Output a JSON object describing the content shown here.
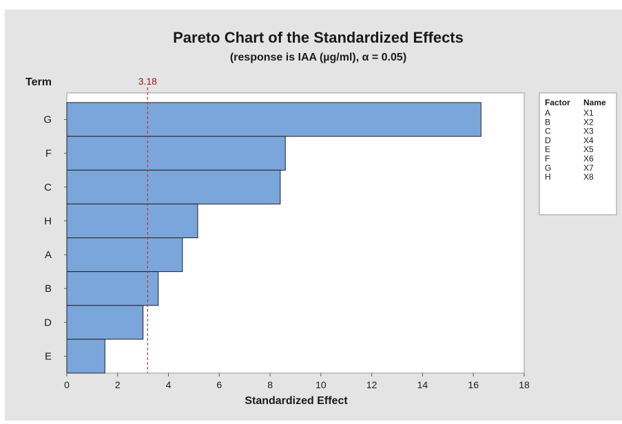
{
  "chart_data": {
    "type": "bar",
    "orientation": "horizontal",
    "title": "Pareto Chart of the Standardized Effects",
    "subtitle": "(response is IAA (µg/ml), α = 0.05)",
    "xlabel": "Standardized Effect",
    "ylabel": "Term",
    "xlim": [
      0,
      18
    ],
    "xticks": [
      0,
      2,
      4,
      6,
      8,
      10,
      12,
      14,
      16,
      18
    ],
    "categories": [
      "G",
      "F",
      "C",
      "H",
      "A",
      "B",
      "D",
      "E"
    ],
    "values": [
      16.3,
      8.6,
      8.4,
      5.15,
      4.55,
      3.6,
      3.0,
      1.5
    ],
    "reference_line": {
      "value": 3.18,
      "label": "3.18",
      "color": "#c0392b",
      "style": "dashed"
    },
    "bar_color": "#7ba6db",
    "bar_edge_color": "#1f1f1f",
    "grid": false,
    "legend": {
      "placement": "right",
      "headers": [
        "Factor",
        "Name"
      ],
      "rows": [
        [
          "A",
          "X1"
        ],
        [
          "B",
          "X2"
        ],
        [
          "C",
          "X3"
        ],
        [
          "D",
          "X4"
        ],
        [
          "E",
          "X5"
        ],
        [
          "F",
          "X6"
        ],
        [
          "G",
          "X7"
        ],
        [
          "H",
          "X8"
        ]
      ]
    }
  }
}
